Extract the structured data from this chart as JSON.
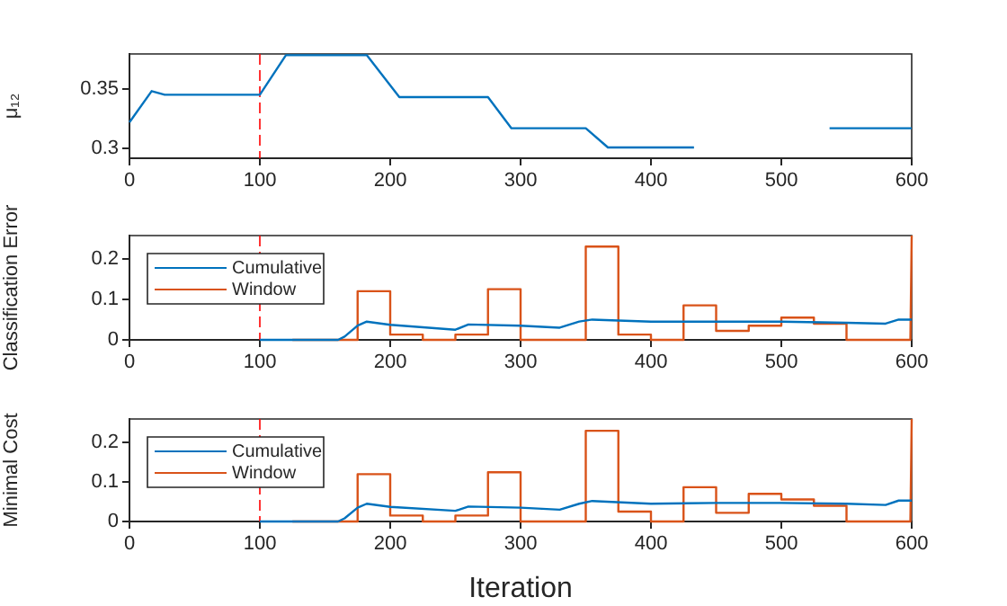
{
  "chart_data": [
    {
      "type": "line",
      "ylabel": "μ₁₂",
      "xlim": [
        0,
        600
      ],
      "xticks": [
        0,
        100,
        200,
        300,
        400,
        500,
        600
      ],
      "ylim": [
        0.292,
        0.379
      ],
      "yticks": [
        0.3,
        0.35
      ],
      "grid": false,
      "legend": false,
      "marker": "none",
      "ref_lines": [
        {
          "axis": "x",
          "value": 100,
          "color": "#ff0000",
          "line_style": "dashed"
        }
      ],
      "series": [
        {
          "color": "#0072bd",
          "x": [
            0,
            17,
            27,
            100,
            120,
            182,
            207,
            275,
            293,
            350,
            367,
            433,
            457,
            517,
            537,
            600
          ],
          "values": [
            0.322,
            0.348,
            0.345,
            0.345,
            0.378,
            0.378,
            0.343,
            0.343,
            0.317,
            0.317,
            0.301,
            0.301,
            null,
            null,
            0.317,
            0.317
          ]
        }
      ]
    },
    {
      "type": "line",
      "ylabel": "Classification Error",
      "xlim": [
        0,
        600
      ],
      "xticks": [
        0,
        100,
        200,
        300,
        400,
        500,
        600
      ],
      "ylim": [
        0,
        0.257
      ],
      "yticks": [
        0,
        0.1,
        0.2
      ],
      "grid": false,
      "legend": "top left",
      "marker": "none",
      "ref_lines": [
        {
          "axis": "x",
          "value": 100,
          "color": "#ff0000",
          "line_style": "dashed"
        }
      ],
      "series": [
        {
          "name": "Cumulative",
          "color": "#0072bd",
          "x": [
            100,
            160,
            165,
            175,
            182,
            200,
            250,
            260,
            300,
            330,
            345,
            355,
            400,
            450,
            500,
            550,
            580,
            590,
            600
          ],
          "values": [
            0,
            0,
            0.008,
            0.035,
            0.045,
            0.037,
            0.025,
            0.038,
            0.035,
            0.03,
            0.045,
            0.05,
            0.045,
            0.045,
            0.045,
            0.042,
            0.04,
            0.05,
            0.05
          ]
        },
        {
          "name": "Window",
          "color": "#d95319",
          "x": [
            125,
            175,
            175,
            200,
            200,
            225,
            225,
            250,
            250,
            275,
            275,
            300,
            300,
            350,
            350,
            375,
            375,
            400,
            400,
            425,
            425,
            450,
            450,
            475,
            475,
            500,
            500,
            525,
            525,
            550,
            550,
            599,
            600
          ],
          "values": [
            0,
            0,
            0.12,
            0.12,
            0.013,
            0.013,
            0,
            0,
            0.013,
            0.013,
            0.125,
            0.125,
            0,
            0,
            0.23,
            0.23,
            0.013,
            0.013,
            0,
            0,
            0.085,
            0.085,
            0.022,
            0.022,
            0.035,
            0.035,
            0.055,
            0.055,
            0.04,
            0.04,
            0,
            0,
            0.257
          ]
        }
      ]
    },
    {
      "type": "line",
      "xlabel": "Iteration",
      "ylabel": "Minimal Cost",
      "xlim": [
        0,
        600
      ],
      "xticks": [
        0,
        100,
        200,
        300,
        400,
        500,
        600
      ],
      "ylim": [
        0,
        0.26
      ],
      "yticks": [
        0,
        0.1,
        0.2
      ],
      "grid": false,
      "legend": "top left",
      "marker": "none",
      "ref_lines": [
        {
          "axis": "x",
          "value": 100,
          "color": "#ff0000",
          "line_style": "dashed"
        }
      ],
      "series": [
        {
          "name": "Cumulative",
          "color": "#0072bd",
          "x": [
            100,
            160,
            165,
            175,
            182,
            200,
            250,
            260,
            300,
            330,
            345,
            355,
            400,
            450,
            500,
            550,
            580,
            590,
            600
          ],
          "values": [
            0,
            0,
            0.008,
            0.035,
            0.045,
            0.037,
            0.027,
            0.038,
            0.035,
            0.03,
            0.045,
            0.052,
            0.045,
            0.047,
            0.047,
            0.045,
            0.042,
            0.053,
            0.053
          ]
        },
        {
          "name": "Window",
          "color": "#d95319",
          "x": [
            125,
            175,
            175,
            200,
            200,
            225,
            225,
            250,
            250,
            275,
            275,
            300,
            300,
            350,
            350,
            375,
            375,
            400,
            400,
            425,
            425,
            450,
            450,
            475,
            475,
            500,
            500,
            525,
            525,
            550,
            550,
            599,
            600
          ],
          "values": [
            0,
            0,
            0.12,
            0.12,
            0.015,
            0.015,
            0,
            0,
            0.015,
            0.015,
            0.125,
            0.125,
            0,
            0,
            0.23,
            0.23,
            0.025,
            0.025,
            0,
            0,
            0.087,
            0.087,
            0.022,
            0.022,
            0.07,
            0.07,
            0.056,
            0.056,
            0.04,
            0.04,
            0,
            0,
            0.26
          ]
        }
      ]
    }
  ]
}
